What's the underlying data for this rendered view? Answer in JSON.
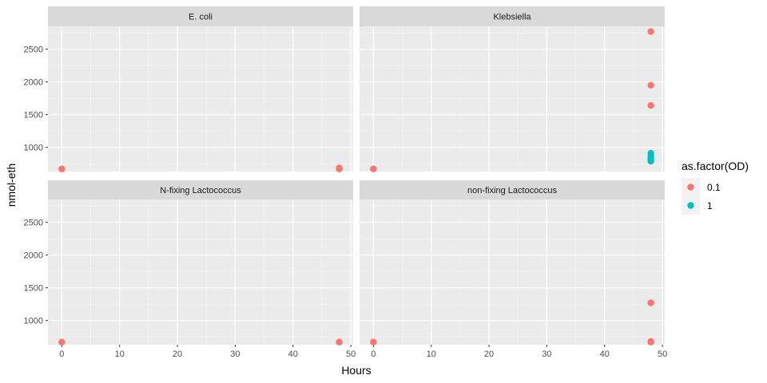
{
  "chart_data": {
    "type": "scatter",
    "xlabel": "Hours",
    "ylabel": "nmol-eth",
    "xlim": [
      -2.4,
      50.4
    ],
    "ylim": [
      630,
      2850
    ],
    "x_ticks": [
      0,
      10,
      20,
      30,
      40,
      50
    ],
    "y_ticks": [
      1000,
      1500,
      2000,
      2500
    ],
    "grid": true,
    "legend": {
      "title": "as.factor(OD)",
      "position": "right",
      "entries": [
        {
          "label": "0.1",
          "color": "#F8766D"
        },
        {
          "label": "1",
          "color": "#00BFC4"
        }
      ]
    },
    "facets": [
      {
        "label": "E. coli",
        "points": [
          {
            "x": 0,
            "y": 670,
            "group": "0.1"
          },
          {
            "x": 48,
            "y": 670,
            "group": "0.1"
          },
          {
            "x": 48,
            "y": 685,
            "group": "0.1"
          }
        ]
      },
      {
        "label": "Klebsiella",
        "points": [
          {
            "x": 0,
            "y": 670,
            "group": "0.1"
          },
          {
            "x": 48,
            "y": 2770,
            "group": "0.1"
          },
          {
            "x": 48,
            "y": 1950,
            "group": "0.1"
          },
          {
            "x": 48,
            "y": 1640,
            "group": "0.1"
          },
          {
            "x": 48,
            "y": 910,
            "group": "1"
          },
          {
            "x": 48,
            "y": 860,
            "group": "1"
          },
          {
            "x": 48,
            "y": 820,
            "group": "1"
          },
          {
            "x": 48,
            "y": 790,
            "group": "1"
          }
        ]
      },
      {
        "label": "N-fixing Lactococcus",
        "points": [
          {
            "x": 0,
            "y": 670,
            "group": "0.1"
          },
          {
            "x": 48,
            "y": 670,
            "group": "0.1"
          }
        ]
      },
      {
        "label": "non-fixing Lactococcus",
        "points": [
          {
            "x": 0,
            "y": 670,
            "group": "0.1"
          },
          {
            "x": 48,
            "y": 1270,
            "group": "0.1"
          },
          {
            "x": 48,
            "y": 680,
            "group": "0.1"
          },
          {
            "x": 48,
            "y": 670,
            "group": "0.1"
          }
        ]
      }
    ]
  }
}
